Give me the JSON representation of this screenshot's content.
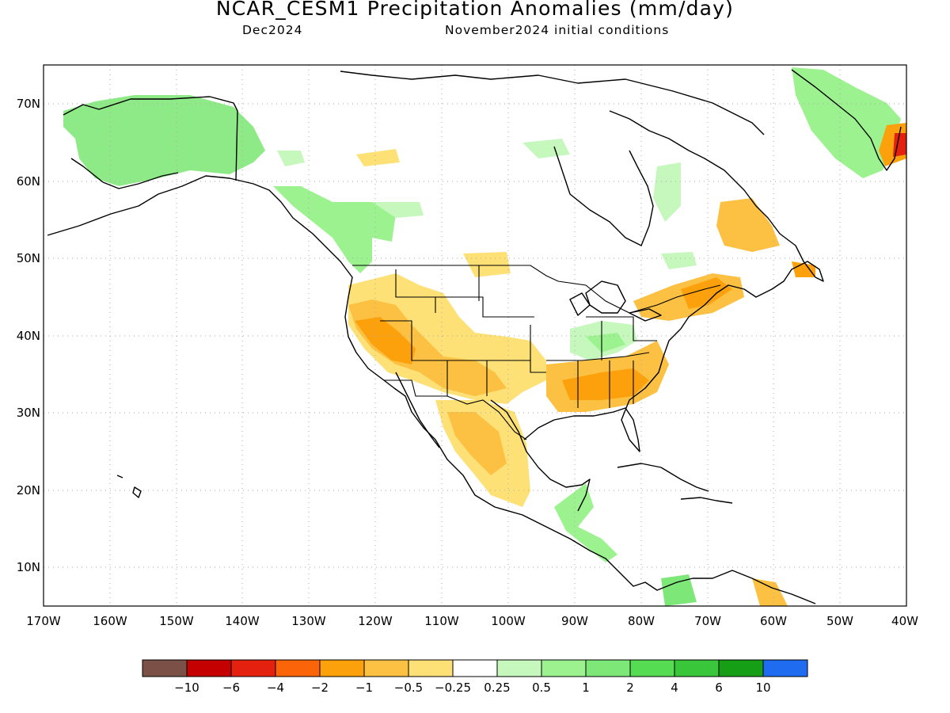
{
  "header": {
    "title": "NCAR_CESM1 Precipitation Anomalies (mm/day)",
    "valid": "Dec2024",
    "init": "November2024 initial conditions"
  },
  "map": {
    "lat_labels": [
      "70N",
      "60N",
      "50N",
      "40N",
      "30N",
      "20N",
      "10N"
    ],
    "lon_labels": [
      "170W",
      "160W",
      "150W",
      "140W",
      "130W",
      "120W",
      "110W",
      "100W",
      "90W",
      "80W",
      "70W",
      "60W",
      "50W",
      "40W"
    ]
  },
  "legend": {
    "colors": [
      "#7b5147",
      "#c40000",
      "#e4200e",
      "#fb6408",
      "#fca10b",
      "#fcc142",
      "#fde177",
      "#ffffff",
      "#c6f8be",
      "#9cf28f",
      "#7de877",
      "#56dc52",
      "#3ac63a",
      "#169f16",
      "#1f6cf1"
    ],
    "labels": [
      "−10",
      "−6",
      "−4",
      "−2",
      "−1",
      "−0.5",
      "−0.25",
      "0.25",
      "0.5",
      "1",
      "2",
      "4",
      "6",
      "10"
    ]
  }
}
